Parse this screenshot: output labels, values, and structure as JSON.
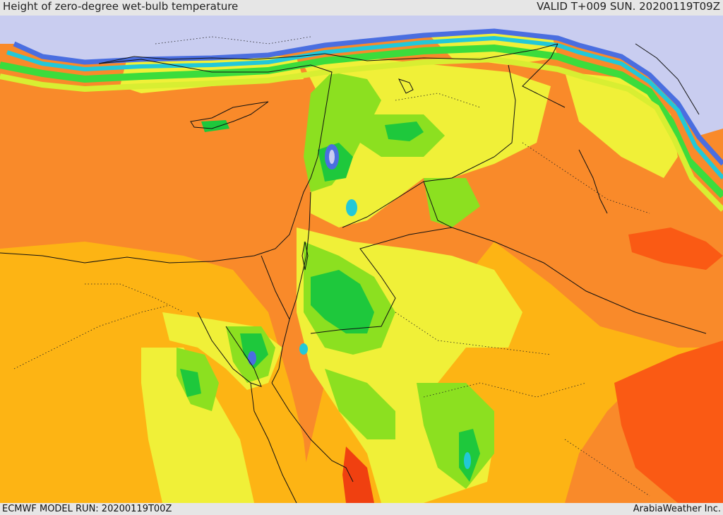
{
  "header": {
    "title": "Height of zero-degree wet-bulb temperature",
    "valid": "VALID T+009 SUN. 20200119T09Z"
  },
  "footer": {
    "model_run": "ECMWF MODEL RUN: 20200119T00Z",
    "credit": "ArabiaWeather Inc."
  },
  "palette": {
    "sea_low": "#c9cdf0",
    "blue": "#4a6ee0",
    "cyan": "#22c8d8",
    "teal": "#16b890",
    "green_dark": "#1ec83c",
    "green": "#3cdc3c",
    "green_light": "#8ce020",
    "yellow_green": "#d8ee32",
    "yellow": "#f0f038",
    "amber": "#fdb414",
    "orange": "#f98a2a",
    "orange_red": "#fa5a14",
    "red": "#f04010",
    "border": "#111111"
  }
}
